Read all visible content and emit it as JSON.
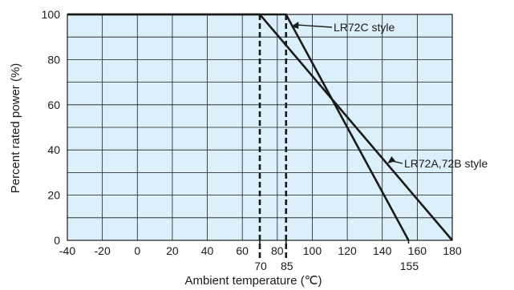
{
  "chart_data": {
    "type": "line",
    "xlabel": "Ambient temperature (℃)",
    "ylabel": "Percent rated power (%)",
    "xlim": [
      -40,
      180
    ],
    "ylim": [
      0,
      100
    ],
    "x_ticks": [
      "-40",
      "-20",
      "0",
      "20",
      "40",
      "60",
      "80",
      "100",
      "120",
      "140",
      "160",
      "180"
    ],
    "y_ticks": [
      "0",
      "20",
      "40",
      "60",
      "80",
      "100"
    ],
    "special_ticks": [
      "70",
      "85",
      "155"
    ],
    "grid": true,
    "plot_background": "#dcf0fb",
    "line_color": "#1a1a1a",
    "series": [
      {
        "name": "LR72A,72B style",
        "x": [
          -40,
          70,
          180
        ],
        "y": [
          100,
          100,
          0
        ]
      },
      {
        "name": "LR72C style",
        "x": [
          -40,
          85,
          155
        ],
        "y": [
          100,
          100,
          0
        ]
      }
    ],
    "reference_lines_x": [
      70,
      85
    ],
    "annotations": [
      {
        "text": "LR72C style",
        "points_to": [
          88,
          100
        ]
      },
      {
        "text": "LR72A,72B style",
        "points_to": [
          143,
          34
        ]
      }
    ]
  }
}
